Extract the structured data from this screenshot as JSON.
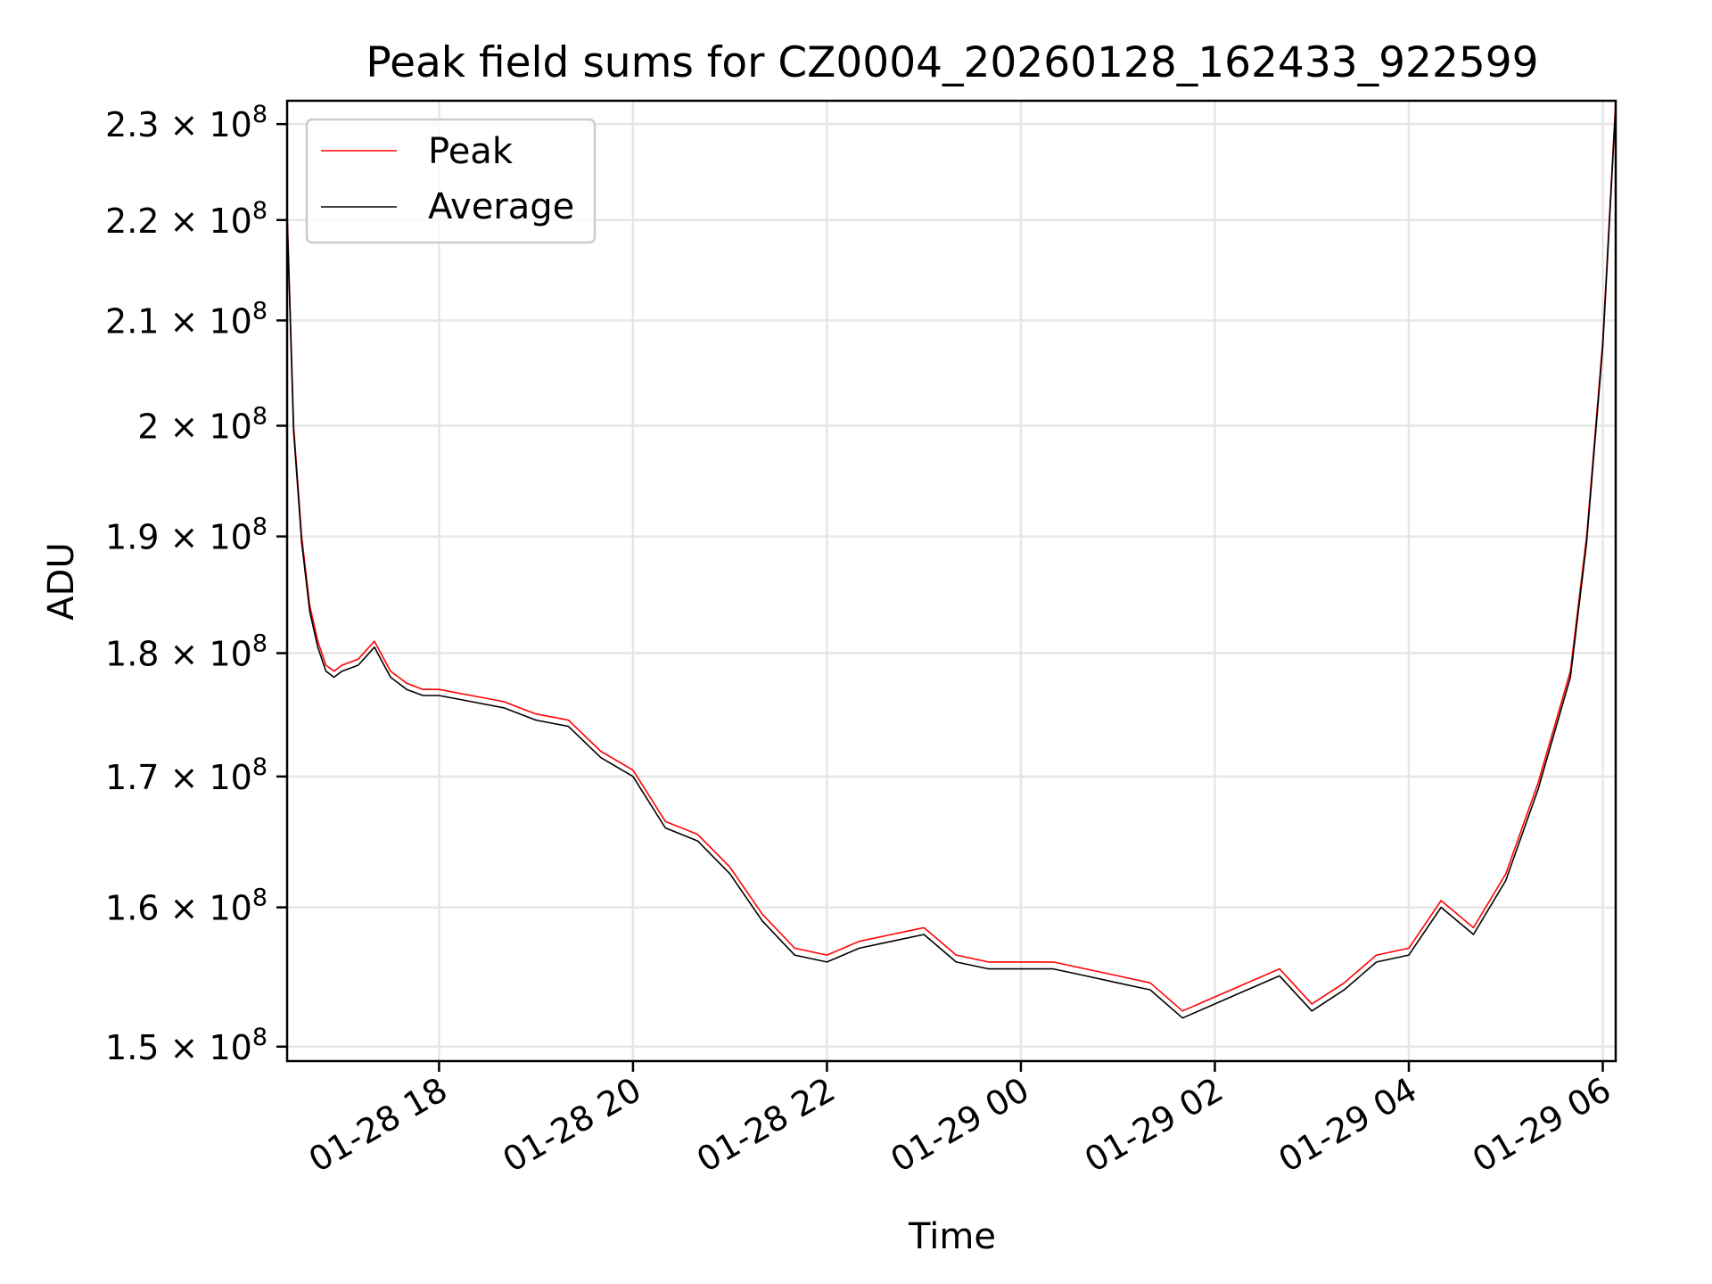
{
  "chart_data": {
    "type": "line",
    "title": "Peak field sums for CZ0004_20260128_162433_922599",
    "xlabel": "Time",
    "ylabel": "ADU",
    "x_scale": "time",
    "y_scale": "log",
    "xlim": [
      "2026-01-28 16:26",
      "2026-01-29 06:08"
    ],
    "ylim": [
      149000000,
      232500000
    ],
    "x_ticks": [
      {
        "value": "2026-01-28 18:00",
        "label": "01-28 18"
      },
      {
        "value": "2026-01-28 20:00",
        "label": "01-28 20"
      },
      {
        "value": "2026-01-28 22:00",
        "label": "01-28 22"
      },
      {
        "value": "2026-01-29 00:00",
        "label": "01-29 00"
      },
      {
        "value": "2026-01-29 02:00",
        "label": "01-29 02"
      },
      {
        "value": "2026-01-29 04:00",
        "label": "01-29 04"
      },
      {
        "value": "2026-01-29 06:00",
        "label": "01-29 06"
      }
    ],
    "y_ticks": [
      {
        "value": 150000000,
        "mantissa": "1.5",
        "base": "10",
        "exponent": "8"
      },
      {
        "value": 160000000,
        "mantissa": "1.6",
        "base": "10",
        "exponent": "8"
      },
      {
        "value": 170000000,
        "mantissa": "1.7",
        "base": "10",
        "exponent": "8"
      },
      {
        "value": 180000000,
        "mantissa": "1.8",
        "base": "10",
        "exponent": "8"
      },
      {
        "value": 190000000,
        "mantissa": "1.9",
        "base": "10",
        "exponent": "8"
      },
      {
        "value": 200000000,
        "mantissa": "2",
        "base": "10",
        "exponent": "8"
      },
      {
        "value": 210000000,
        "mantissa": "2.1",
        "base": "10",
        "exponent": "8"
      },
      {
        "value": 220000000,
        "mantissa": "2.2",
        "base": "10",
        "exponent": "8"
      },
      {
        "value": 230000000,
        "mantissa": "2.3",
        "base": "10",
        "exponent": "8"
      }
    ],
    "grid": true,
    "legend_position": "top-left",
    "series": [
      {
        "name": "Peak",
        "color": "#ff0000",
        "x": [
          "2026-01-28 16:26",
          "2026-01-28 16:30",
          "2026-01-28 16:35",
          "2026-01-28 16:40",
          "2026-01-28 16:45",
          "2026-01-28 16:50",
          "2026-01-28 16:55",
          "2026-01-28 17:00",
          "2026-01-28 17:10",
          "2026-01-28 17:20",
          "2026-01-28 17:30",
          "2026-01-28 17:40",
          "2026-01-28 17:50",
          "2026-01-28 18:00",
          "2026-01-28 18:20",
          "2026-01-28 18:40",
          "2026-01-28 19:00",
          "2026-01-28 19:20",
          "2026-01-28 19:40",
          "2026-01-28 20:00",
          "2026-01-28 20:20",
          "2026-01-28 20:40",
          "2026-01-28 21:00",
          "2026-01-28 21:20",
          "2026-01-28 21:40",
          "2026-01-28 22:00",
          "2026-01-28 22:20",
          "2026-01-28 22:40",
          "2026-01-28 23:00",
          "2026-01-28 23:20",
          "2026-01-28 23:40",
          "2026-01-29 00:00",
          "2026-01-29 00:20",
          "2026-01-29 00:40",
          "2026-01-29 01:00",
          "2026-01-29 01:20",
          "2026-01-29 01:40",
          "2026-01-29 02:00",
          "2026-01-29 02:20",
          "2026-01-29 02:40",
          "2026-01-29 03:00",
          "2026-01-29 03:20",
          "2026-01-29 03:40",
          "2026-01-29 04:00",
          "2026-01-29 04:20",
          "2026-01-29 04:40",
          "2026-01-29 05:00",
          "2026-01-29 05:20",
          "2026-01-29 05:40",
          "2026-01-29 05:50",
          "2026-01-29 06:00",
          "2026-01-29 06:08"
        ],
        "values": [
          221000000,
          200000000,
          190000000,
          184000000,
          181000000,
          179000000,
          178500000,
          179000000,
          179500000,
          181000000,
          178500000,
          177500000,
          177000000,
          177000000,
          176500000,
          176000000,
          175000000,
          174500000,
          172000000,
          170500000,
          166500000,
          165500000,
          163000000,
          159500000,
          157000000,
          156500000,
          157500000,
          158000000,
          158500000,
          156500000,
          156000000,
          156000000,
          156000000,
          155500000,
          155000000,
          154500000,
          152500000,
          153500000,
          154500000,
          155500000,
          153000000,
          154500000,
          156500000,
          157000000,
          160500000,
          158500000,
          162500000,
          169500000,
          178500000,
          190000000,
          208000000,
          232500000
        ]
      },
      {
        "name": "Average",
        "color": "#000000",
        "x": [
          "2026-01-28 16:26",
          "2026-01-28 16:30",
          "2026-01-28 16:35",
          "2026-01-28 16:40",
          "2026-01-28 16:45",
          "2026-01-28 16:50",
          "2026-01-28 16:55",
          "2026-01-28 17:00",
          "2026-01-28 17:10",
          "2026-01-28 17:20",
          "2026-01-28 17:30",
          "2026-01-28 17:40",
          "2026-01-28 17:50",
          "2026-01-28 18:00",
          "2026-01-28 18:20",
          "2026-01-28 18:40",
          "2026-01-28 19:00",
          "2026-01-28 19:20",
          "2026-01-28 19:40",
          "2026-01-28 20:00",
          "2026-01-28 20:20",
          "2026-01-28 20:40",
          "2026-01-28 21:00",
          "2026-01-28 21:20",
          "2026-01-28 21:40",
          "2026-01-28 22:00",
          "2026-01-28 22:20",
          "2026-01-28 22:40",
          "2026-01-28 23:00",
          "2026-01-28 23:20",
          "2026-01-28 23:40",
          "2026-01-29 00:00",
          "2026-01-29 00:20",
          "2026-01-29 00:40",
          "2026-01-29 01:00",
          "2026-01-29 01:20",
          "2026-01-29 01:40",
          "2026-01-29 02:00",
          "2026-01-29 02:20",
          "2026-01-29 02:40",
          "2026-01-29 03:00",
          "2026-01-29 03:20",
          "2026-01-29 03:40",
          "2026-01-29 04:00",
          "2026-01-29 04:20",
          "2026-01-29 04:40",
          "2026-01-29 05:00",
          "2026-01-29 05:20",
          "2026-01-29 05:40",
          "2026-01-29 05:50",
          "2026-01-29 06:00",
          "2026-01-29 06:08"
        ],
        "values": [
          220500000,
          199500000,
          189500000,
          183500000,
          180500000,
          178500000,
          178000000,
          178500000,
          179000000,
          180500000,
          178000000,
          177000000,
          176500000,
          176500000,
          176000000,
          175500000,
          174500000,
          174000000,
          171500000,
          170000000,
          166000000,
          165000000,
          162500000,
          159000000,
          156500000,
          156000000,
          157000000,
          157500000,
          158000000,
          156000000,
          155500000,
          155500000,
          155500000,
          155000000,
          154500000,
          154000000,
          152000000,
          153000000,
          154000000,
          155000000,
          152500000,
          154000000,
          156000000,
          156500000,
          160000000,
          158000000,
          162000000,
          169000000,
          178000000,
          189500000,
          207500000,
          232000000
        ]
      }
    ]
  }
}
